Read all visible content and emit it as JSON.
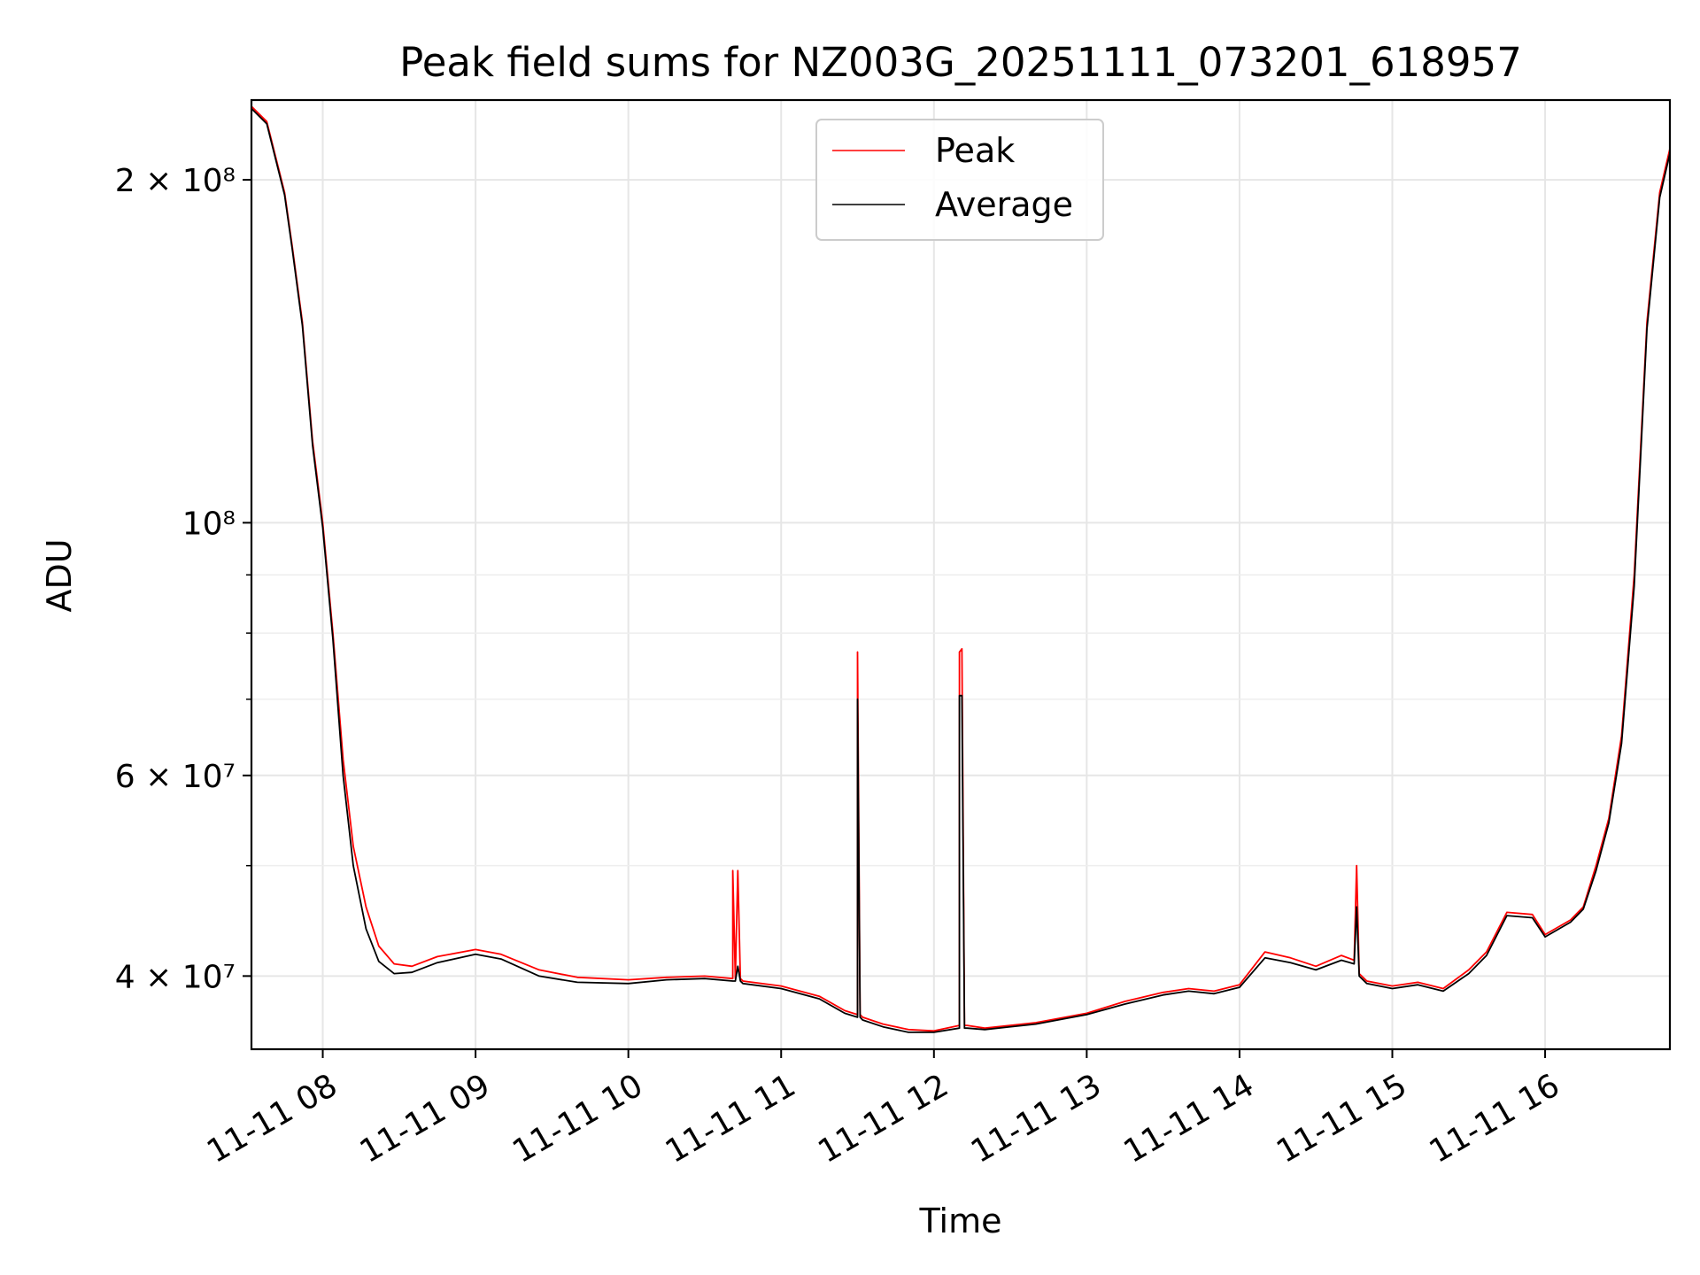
{
  "chart_data": {
    "type": "line",
    "title": "Peak field sums for NZ003G_20251111_073201_618957",
    "xlabel": "Time",
    "ylabel": "ADU",
    "y_scale": "log",
    "grid": true,
    "legend_position": "top-center",
    "xlim": [
      "2025-11-11 07:32",
      "2025-11-11 16:49"
    ],
    "ylim": [
      34500000,
      235000000
    ],
    "x_ticks": [
      {
        "t": "2025-11-11 08:00",
        "label": "11-11 08"
      },
      {
        "t": "2025-11-11 09:00",
        "label": "11-11 09"
      },
      {
        "t": "2025-11-11 10:00",
        "label": "11-11 10"
      },
      {
        "t": "2025-11-11 11:00",
        "label": "11-11 11"
      },
      {
        "t": "2025-11-11 12:00",
        "label": "11-11 12"
      },
      {
        "t": "2025-11-11 13:00",
        "label": "11-11 13"
      },
      {
        "t": "2025-11-11 14:00",
        "label": "11-11 14"
      },
      {
        "t": "2025-11-11 15:00",
        "label": "11-11 15"
      },
      {
        "t": "2025-11-11 16:00",
        "label": "11-11 16"
      }
    ],
    "y_ticks": [
      {
        "value": 40000000,
        "label": "4 × 10⁷"
      },
      {
        "value": 60000000,
        "label": "6 × 10⁷"
      },
      {
        "value": 100000000,
        "label": "10⁸"
      },
      {
        "value": 200000000,
        "label": "2 × 10⁸"
      }
    ],
    "y_minor_ticks": [
      50000000,
      70000000,
      80000000,
      90000000
    ],
    "series": [
      {
        "name": "Peak",
        "color": "#ff0000",
        "x": [
          "2025-11-11 07:32",
          "2025-11-11 07:38",
          "2025-11-11 07:45",
          "2025-11-11 07:48",
          "2025-11-11 07:52",
          "2025-11-11 07:56",
          "2025-11-11 08:00",
          "2025-11-11 08:04",
          "2025-11-11 08:08",
          "2025-11-11 08:12",
          "2025-11-11 08:17",
          "2025-11-11 08:22",
          "2025-11-11 08:28",
          "2025-11-11 08:35",
          "2025-11-11 08:45",
          "2025-11-11 09:00",
          "2025-11-11 09:10",
          "2025-11-11 09:25",
          "2025-11-11 09:40",
          "2025-11-11 10:00",
          "2025-11-11 10:15",
          "2025-11-11 10:30",
          "2025-11-11 10:41",
          "2025-11-11 10:41",
          "2025-11-11 10:42",
          "2025-11-11 10:43",
          "2025-11-11 10:44",
          "2025-11-11 10:45",
          "2025-11-11 11:00",
          "2025-11-11 11:15",
          "2025-11-11 11:25",
          "2025-11-11 11:30",
          "2025-11-11 11:30",
          "2025-11-11 11:31",
          "2025-11-11 11:32",
          "2025-11-11 11:40",
          "2025-11-11 11:50",
          "2025-11-11 12:00",
          "2025-11-11 12:10",
          "2025-11-11 12:10",
          "2025-11-11 12:11",
          "2025-11-11 12:12",
          "2025-11-11 12:13",
          "2025-11-11 12:20",
          "2025-11-11 12:40",
          "2025-11-11 13:00",
          "2025-11-11 13:15",
          "2025-11-11 13:30",
          "2025-11-11 13:40",
          "2025-11-11 13:50",
          "2025-11-11 14:00",
          "2025-11-11 14:10",
          "2025-11-11 14:20",
          "2025-11-11 14:30",
          "2025-11-11 14:40",
          "2025-11-11 14:45",
          "2025-11-11 14:46",
          "2025-11-11 14:47",
          "2025-11-11 14:50",
          "2025-11-11 15:00",
          "2025-11-11 15:10",
          "2025-11-11 15:20",
          "2025-11-11 15:30",
          "2025-11-11 15:37",
          "2025-11-11 15:45",
          "2025-11-11 15:55",
          "2025-11-11 16:00",
          "2025-11-11 16:10",
          "2025-11-11 16:15",
          "2025-11-11 16:20",
          "2025-11-11 16:25",
          "2025-11-11 16:30",
          "2025-11-11 16:35",
          "2025-11-11 16:40",
          "2025-11-11 16:45",
          "2025-11-11 16:49"
        ],
        "y": [
          232000000,
          225000000,
          195000000,
          175000000,
          150000000,
          118000000,
          100000000,
          80000000,
          62000000,
          52000000,
          46000000,
          42500000,
          41000000,
          40800000,
          41600000,
          42200000,
          41800000,
          40500000,
          39900000,
          39700000,
          39900000,
          40000000,
          39800000,
          49500000,
          39800000,
          49500000,
          39800000,
          39600000,
          39200000,
          38400000,
          37300000,
          37000000,
          77000000,
          37000000,
          36800000,
          36300000,
          35900000,
          35800000,
          36200000,
          77000000,
          77500000,
          36200000,
          36200000,
          36000000,
          36400000,
          37100000,
          38000000,
          38700000,
          39000000,
          38800000,
          39300000,
          42000000,
          41500000,
          40800000,
          41700000,
          41300000,
          50000000,
          40200000,
          39600000,
          39200000,
          39500000,
          39000000,
          40500000,
          42000000,
          45500000,
          45300000,
          43500000,
          44800000,
          46000000,
          50000000,
          55000000,
          65000000,
          90000000,
          150000000,
          195000000,
          213000000
        ]
      },
      {
        "name": "Average",
        "color": "#000000",
        "x": [
          "2025-11-11 07:32",
          "2025-11-11 07:38",
          "2025-11-11 07:45",
          "2025-11-11 07:48",
          "2025-11-11 07:52",
          "2025-11-11 07:56",
          "2025-11-11 08:00",
          "2025-11-11 08:04",
          "2025-11-11 08:08",
          "2025-11-11 08:12",
          "2025-11-11 08:17",
          "2025-11-11 08:22",
          "2025-11-11 08:28",
          "2025-11-11 08:35",
          "2025-11-11 08:45",
          "2025-11-11 09:00",
          "2025-11-11 09:10",
          "2025-11-11 09:25",
          "2025-11-11 09:40",
          "2025-11-11 10:00",
          "2025-11-11 10:15",
          "2025-11-11 10:30",
          "2025-11-11 10:41",
          "2025-11-11 10:41",
          "2025-11-11 10:42",
          "2025-11-11 10:43",
          "2025-11-11 10:44",
          "2025-11-11 10:45",
          "2025-11-11 11:00",
          "2025-11-11 11:15",
          "2025-11-11 11:25",
          "2025-11-11 11:30",
          "2025-11-11 11:30",
          "2025-11-11 11:31",
          "2025-11-11 11:32",
          "2025-11-11 11:40",
          "2025-11-11 11:50",
          "2025-11-11 12:00",
          "2025-11-11 12:10",
          "2025-11-11 12:10",
          "2025-11-11 12:11",
          "2025-11-11 12:12",
          "2025-11-11 12:13",
          "2025-11-11 12:20",
          "2025-11-11 12:40",
          "2025-11-11 13:00",
          "2025-11-11 13:15",
          "2025-11-11 13:30",
          "2025-11-11 13:40",
          "2025-11-11 13:50",
          "2025-11-11 14:00",
          "2025-11-11 14:10",
          "2025-11-11 14:20",
          "2025-11-11 14:30",
          "2025-11-11 14:40",
          "2025-11-11 14:45",
          "2025-11-11 14:46",
          "2025-11-11 14:47",
          "2025-11-11 14:50",
          "2025-11-11 15:00",
          "2025-11-11 15:10",
          "2025-11-11 15:20",
          "2025-11-11 15:30",
          "2025-11-11 15:37",
          "2025-11-11 15:45",
          "2025-11-11 15:55",
          "2025-11-11 16:00",
          "2025-11-11 16:10",
          "2025-11-11 16:15",
          "2025-11-11 16:20",
          "2025-11-11 16:25",
          "2025-11-11 16:30",
          "2025-11-11 16:35",
          "2025-11-11 16:40",
          "2025-11-11 16:45",
          "2025-11-11 16:49"
        ],
        "y": [
          231000000,
          224000000,
          194000000,
          174000000,
          149000000,
          117000000,
          99000000,
          79000000,
          60000000,
          50000000,
          44000000,
          41200000,
          40200000,
          40300000,
          41100000,
          41800000,
          41400000,
          40000000,
          39500000,
          39400000,
          39700000,
          39800000,
          39600000,
          39600000,
          39600000,
          40800000,
          39600000,
          39400000,
          39000000,
          38200000,
          37100000,
          36800000,
          70000000,
          36800000,
          36600000,
          36100000,
          35700000,
          35700000,
          36000000,
          70500000,
          70500000,
          36000000,
          36000000,
          35900000,
          36300000,
          37000000,
          37800000,
          38500000,
          38800000,
          38600000,
          39100000,
          41500000,
          41100000,
          40500000,
          41300000,
          41000000,
          46000000,
          40000000,
          39400000,
          39000000,
          39300000,
          38800000,
          40200000,
          41700000,
          45200000,
          45000000,
          43300000,
          44600000,
          45800000,
          49500000,
          54500000,
          64000000,
          88000000,
          148000000,
          193000000,
          211000000
        ]
      }
    ]
  }
}
